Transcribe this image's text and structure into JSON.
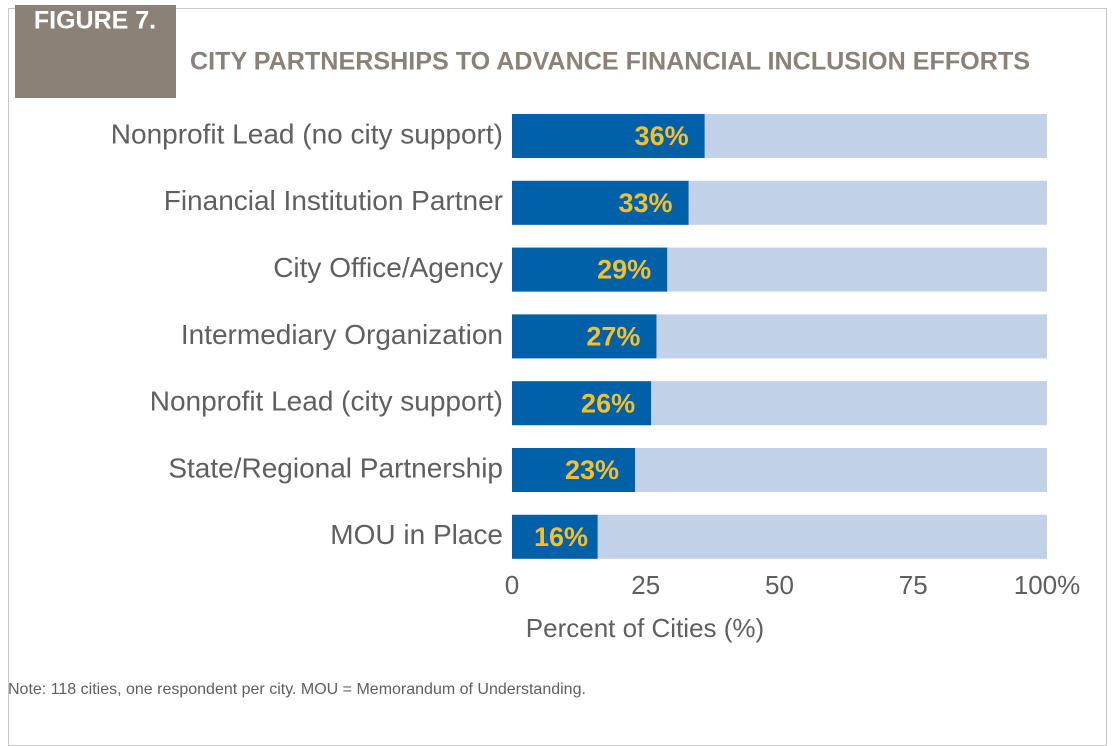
{
  "chart_data": {
    "type": "barh",
    "figure_label": "FIGURE 7.",
    "title": "CITY PARTNERSHIPS TO ADVANCE FINANCIAL INCLUSION EFFORTS",
    "categories": [
      "Nonprofit Lead (no city support)",
      "Financial Institution Partner",
      "City Office/Agency",
      "Intermediary Organization",
      "Nonprofit Lead (city support)",
      "State/Regional Partnership",
      "MOU in Place"
    ],
    "values": [
      36,
      33,
      29,
      27,
      26,
      23,
      16
    ],
    "value_labels": [
      "36%",
      "33%",
      "29%",
      "27%",
      "26%",
      "23%",
      "16%"
    ],
    "color": "#0061a8",
    "background_color": "#c0d1e8",
    "xlim": [
      0,
      100
    ],
    "xticks": [
      0,
      25,
      50,
      75,
      {
        "value": 100,
        "label": "100%"
      }
    ],
    "xlabel": "Percent of Cities (%)",
    "note": "Note: 118 cities, one respondent per city. MOU = Memorandum of Understanding."
  }
}
